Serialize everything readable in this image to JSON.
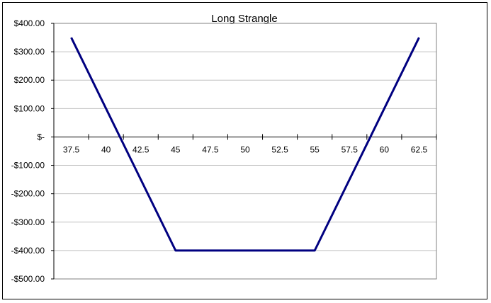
{
  "chart_data": {
    "type": "line",
    "title": "Long Strangle",
    "xlabel": "",
    "ylabel": "",
    "categories": [
      "37.5",
      "40",
      "42.5",
      "45",
      "47.5",
      "50",
      "52.5",
      "55",
      "57.5",
      "60",
      "62.5"
    ],
    "x": [
      37.5,
      40,
      42.5,
      45,
      47.5,
      50,
      52.5,
      55,
      57.5,
      60,
      62.5
    ],
    "series": [
      {
        "name": "",
        "color": "#000080",
        "values": [
          350,
          100,
          -150,
          -400,
          -400,
          -400,
          -400,
          -400,
          -150,
          100,
          350
        ]
      }
    ],
    "yticks": [
      400,
      300,
      200,
      100,
      0,
      -100,
      -200,
      -300,
      -400,
      -500
    ],
    "ytick_labels": [
      "$400.00",
      "$300.00",
      "$200.00",
      "$100.00",
      "$-",
      "-$100.00",
      "-$200.00",
      "-$300.00",
      "-$400.00",
      "-$500.00"
    ],
    "ylim": [
      -500,
      400
    ],
    "grid": true,
    "legend": "none"
  }
}
